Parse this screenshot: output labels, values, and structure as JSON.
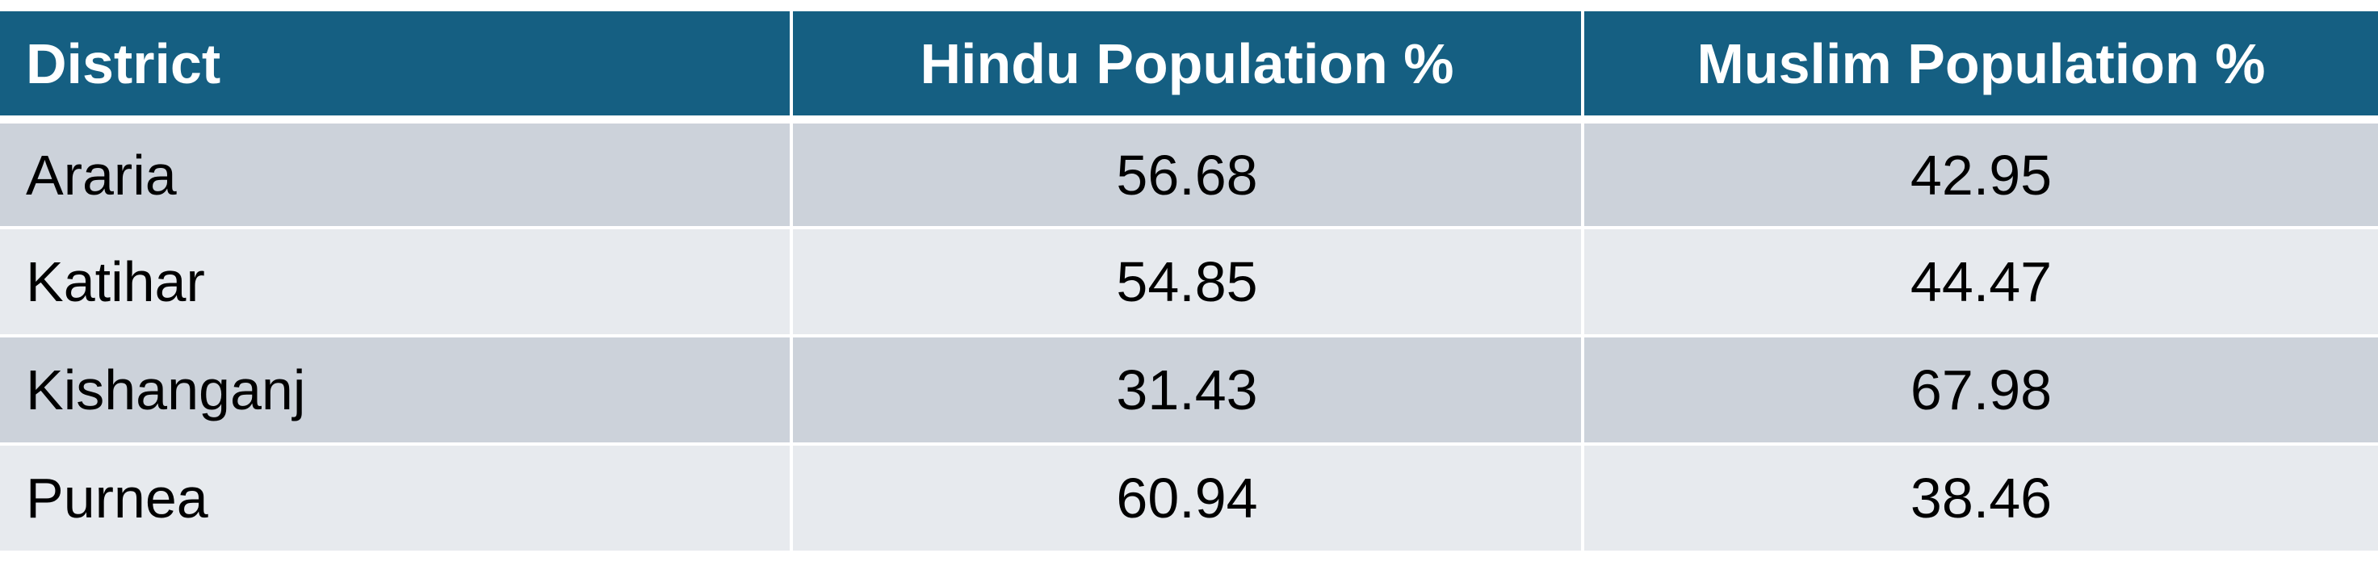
{
  "table": {
    "headers": [
      "District",
      "Hindu Population %",
      "Muslim Population %"
    ],
    "rows": [
      {
        "district": "Araria",
        "hindu": "56.68",
        "muslim": "42.95"
      },
      {
        "district": "Katihar",
        "hindu": "54.85",
        "muslim": "44.47"
      },
      {
        "district": "Kishanganj",
        "hindu": "31.43",
        "muslim": "67.98"
      },
      {
        "district": "Purnea",
        "hindu": "60.94",
        "muslim": "38.46"
      }
    ]
  },
  "colors": {
    "header_bg": "#155f82",
    "header_text": "#ffffff",
    "band_dark": "#ccd2da",
    "band_light": "#e7eaee"
  }
}
